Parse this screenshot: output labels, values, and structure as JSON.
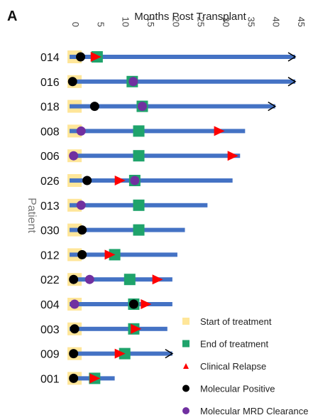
{
  "chart_data": {
    "type": "swimmer",
    "panel_label": "A",
    "xlabel": "Months Post Transplant",
    "ylabel": "Patient",
    "xlim": [
      0,
      45
    ],
    "xticks": [
      0,
      5,
      10,
      15,
      20,
      25,
      30,
      35,
      40,
      45
    ],
    "colors": {
      "bar": "#4472C4",
      "start": "#FFE699",
      "end": "#1FA36B",
      "relapse": "#FF0000",
      "positive": "#000000",
      "clearance": "#7030A0"
    },
    "legend": [
      {
        "key": "start",
        "label": "Start of treatment"
      },
      {
        "key": "end",
        "label": "End of treatment"
      },
      {
        "key": "relapse",
        "label": "Clinical Relapse"
      },
      {
        "key": "positive",
        "label": "Molecular Positive"
      },
      {
        "key": "clearance",
        "label": "Molecular MRD Clearance"
      }
    ],
    "patients": [
      {
        "id": "014",
        "duration": 45,
        "ongoing": true,
        "start": 1.0,
        "end": 5.5,
        "relapse": 5.2,
        "positive": 2.2
      },
      {
        "id": "016",
        "duration": 45,
        "ongoing": true,
        "start": 1.0,
        "end": 12.5,
        "positive": 0.6,
        "clearance": 12.7
      },
      {
        "id": "018",
        "duration": 41,
        "ongoing": true,
        "start": 1.0,
        "end": 14.5,
        "positive": 5.0,
        "clearance": 14.5
      },
      {
        "id": "008",
        "duration": 35,
        "ongoing": false,
        "start": 1.0,
        "end": 13.8,
        "relapse": 29.8,
        "clearance": 2.3
      },
      {
        "id": "006",
        "duration": 34,
        "ongoing": false,
        "start": 1.0,
        "end": 13.8,
        "relapse": 32.5,
        "clearance": 0.8
      },
      {
        "id": "026",
        "duration": 32.5,
        "ongoing": false,
        "start": 1.0,
        "end": 13.0,
        "relapse": 10.0,
        "positive": 3.5,
        "clearance": 13.0
      },
      {
        "id": "013",
        "duration": 27.5,
        "ongoing": false,
        "start": 1.0,
        "end": 13.8,
        "clearance": 2.3
      },
      {
        "id": "030",
        "duration": 23,
        "ongoing": false,
        "start": 1.0,
        "end": 13.8,
        "positive": 2.5
      },
      {
        "id": "012",
        "duration": 21.5,
        "ongoing": false,
        "start": 1.0,
        "end": 9.0,
        "relapse": 8.0,
        "positive": 2.5
      },
      {
        "id": "022",
        "duration": 20.5,
        "ongoing": false,
        "start": 1.0,
        "end": 12.0,
        "relapse": 17.5,
        "positive": 0.8,
        "clearance": 4.0
      },
      {
        "id": "004",
        "duration": 20.5,
        "ongoing": false,
        "start": 1.0,
        "end": 12.8,
        "relapse": 15.2,
        "positive": 12.8,
        "clearance": 1.0
      },
      {
        "id": "003",
        "duration": 19.5,
        "ongoing": false,
        "start": 1.0,
        "end": 12.8,
        "relapse": 13.2,
        "positive": 1.0
      },
      {
        "id": "009",
        "duration": 20.5,
        "ongoing": true,
        "start": 1.0,
        "end": 11.0,
        "relapse": 10.0,
        "positive": 0.8
      },
      {
        "id": "001",
        "duration": 9,
        "ongoing": false,
        "start": 1.0,
        "end": 5.0,
        "relapse": 5.0,
        "positive": 0.8
      }
    ]
  }
}
